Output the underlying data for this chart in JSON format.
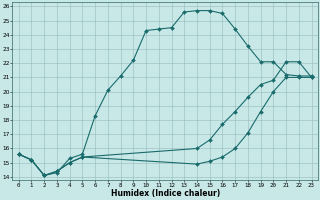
{
  "xlabel": "Humidex (Indice chaleur)",
  "bg_color": "#c8e8e8",
  "grid_color": "#99bbbb",
  "line_color": "#1a6b6b",
  "xlim": [
    -0.5,
    23.5
  ],
  "ylim": [
    13.8,
    26.3
  ],
  "xticks": [
    0,
    1,
    2,
    3,
    4,
    5,
    6,
    7,
    8,
    9,
    10,
    11,
    12,
    13,
    14,
    15,
    16,
    17,
    18,
    19,
    20,
    21,
    22,
    23
  ],
  "yticks": [
    14,
    15,
    16,
    17,
    18,
    19,
    20,
    21,
    22,
    23,
    24,
    25,
    26
  ],
  "curve1_x": [
    0,
    1,
    2,
    3,
    4,
    5,
    6,
    7,
    8,
    9,
    10,
    11,
    12,
    13,
    14,
    15,
    16,
    17,
    18,
    19,
    20,
    21,
    22,
    23
  ],
  "curve1_y": [
    15.6,
    15.2,
    14.1,
    14.3,
    15.3,
    15.6,
    18.3,
    20.1,
    21.1,
    22.2,
    24.3,
    24.4,
    24.5,
    25.6,
    25.7,
    25.7,
    25.5,
    24.4,
    23.2,
    22.1,
    22.1,
    21.2,
    21.1,
    21.1
  ],
  "curve2_x": [
    0,
    1,
    2,
    3,
    4,
    5,
    14,
    15,
    16,
    17,
    18,
    19,
    20,
    21,
    22,
    23
  ],
  "curve2_y": [
    15.6,
    15.2,
    14.1,
    14.4,
    15.0,
    15.4,
    14.9,
    15.1,
    15.4,
    16.0,
    17.1,
    18.6,
    20.0,
    21.0,
    21.0,
    21.0
  ],
  "curve3_x": [
    0,
    1,
    2,
    3,
    4,
    5,
    14,
    15,
    16,
    17,
    18,
    19,
    20,
    21,
    22,
    23
  ],
  "curve3_y": [
    15.6,
    15.2,
    14.1,
    14.4,
    15.0,
    15.4,
    16.0,
    16.6,
    17.7,
    18.6,
    19.6,
    20.5,
    20.8,
    22.1,
    22.1,
    21.0
  ]
}
